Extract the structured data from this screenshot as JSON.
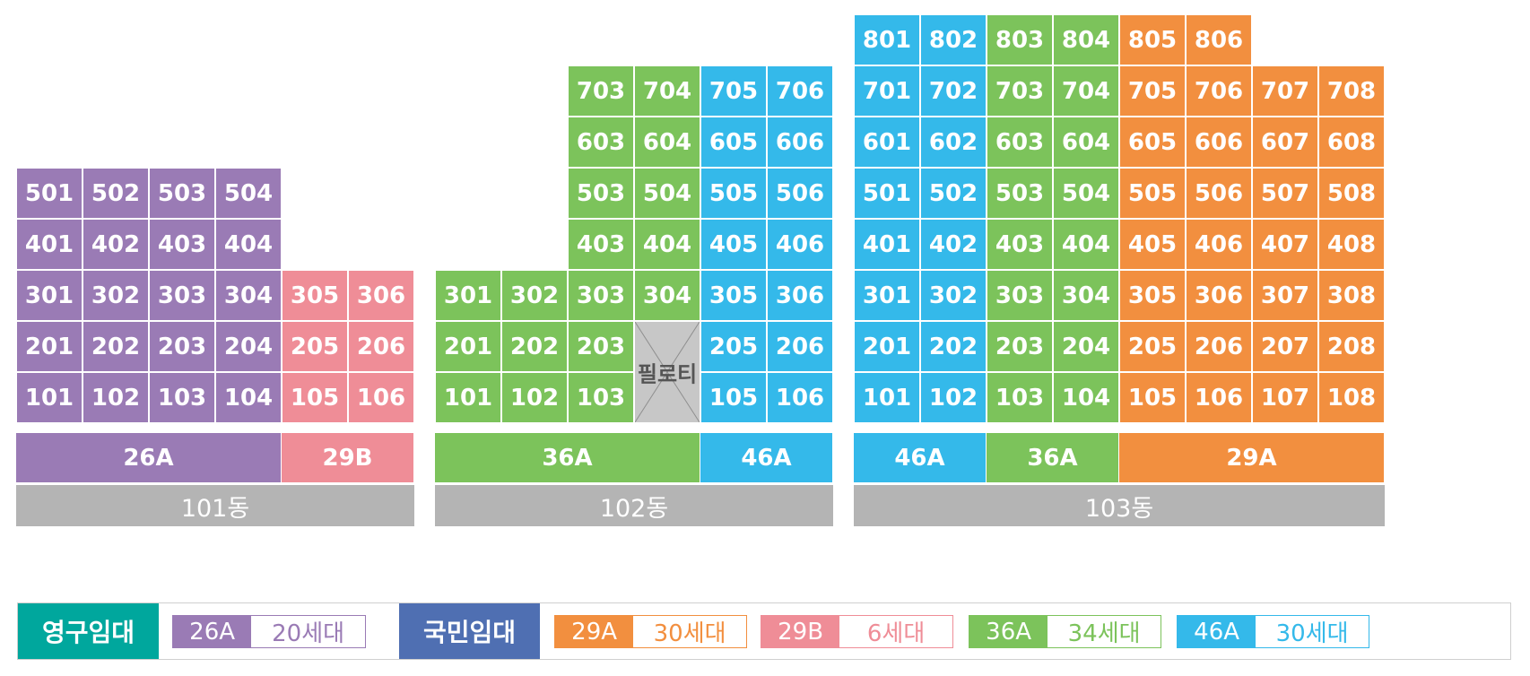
{
  "colors": {
    "purple": "#9a7bb5",
    "pink": "#ef8d97",
    "green": "#7cc35b",
    "blue": "#34b9ea",
    "orange": "#f28f3f",
    "gray": "#b4b4b4",
    "teal": "#00a79d",
    "navy": "#4f6fb2"
  },
  "buildings": [
    {
      "name": "101동",
      "rows": [
        {
          "floor": 5,
          "cells": [
            {
              "no": "501",
              "c": "purple"
            },
            {
              "no": "502",
              "c": "purple"
            },
            {
              "no": "503",
              "c": "purple"
            },
            {
              "no": "504",
              "c": "purple"
            }
          ]
        },
        {
          "floor": 4,
          "cells": [
            {
              "no": "401",
              "c": "purple"
            },
            {
              "no": "402",
              "c": "purple"
            },
            {
              "no": "403",
              "c": "purple"
            },
            {
              "no": "404",
              "c": "purple"
            }
          ]
        },
        {
          "floor": 3,
          "cells": [
            {
              "no": "301",
              "c": "purple"
            },
            {
              "no": "302",
              "c": "purple"
            },
            {
              "no": "303",
              "c": "purple"
            },
            {
              "no": "304",
              "c": "purple"
            },
            {
              "no": "305",
              "c": "pink"
            },
            {
              "no": "306",
              "c": "pink"
            }
          ]
        },
        {
          "floor": 2,
          "cells": [
            {
              "no": "201",
              "c": "purple"
            },
            {
              "no": "202",
              "c": "purple"
            },
            {
              "no": "203",
              "c": "purple"
            },
            {
              "no": "204",
              "c": "purple"
            },
            {
              "no": "205",
              "c": "pink"
            },
            {
              "no": "206",
              "c": "pink"
            }
          ]
        },
        {
          "floor": 1,
          "cells": [
            {
              "no": "101",
              "c": "purple"
            },
            {
              "no": "102",
              "c": "purple"
            },
            {
              "no": "103",
              "c": "purple"
            },
            {
              "no": "104",
              "c": "purple"
            },
            {
              "no": "105",
              "c": "pink"
            },
            {
              "no": "106",
              "c": "pink"
            }
          ]
        }
      ],
      "types": [
        {
          "label": "26A",
          "c": "purple",
          "span": 4
        },
        {
          "label": "29B",
          "c": "pink",
          "span": 2
        }
      ]
    },
    {
      "name": "102동",
      "rows": [
        {
          "floor": 7,
          "cells": [
            {
              "col": 2,
              "no": "703",
              "c": "green"
            },
            {
              "no": "704",
              "c": "green"
            },
            {
              "no": "705",
              "c": "blue"
            },
            {
              "no": "706",
              "c": "blue"
            }
          ]
        },
        {
          "floor": 6,
          "cells": [
            {
              "col": 2,
              "no": "603",
              "c": "green"
            },
            {
              "no": "604",
              "c": "green"
            },
            {
              "no": "605",
              "c": "blue"
            },
            {
              "no": "606",
              "c": "blue"
            }
          ]
        },
        {
          "floor": 5,
          "cells": [
            {
              "col": 2,
              "no": "503",
              "c": "green"
            },
            {
              "no": "504",
              "c": "green"
            },
            {
              "no": "505",
              "c": "blue"
            },
            {
              "no": "506",
              "c": "blue"
            }
          ]
        },
        {
          "floor": 4,
          "cells": [
            {
              "col": 2,
              "no": "403",
              "c": "green"
            },
            {
              "no": "404",
              "c": "green"
            },
            {
              "no": "405",
              "c": "blue"
            },
            {
              "no": "406",
              "c": "blue"
            }
          ]
        },
        {
          "floor": 3,
          "cells": [
            {
              "no": "301",
              "c": "green"
            },
            {
              "no": "302",
              "c": "green"
            },
            {
              "no": "303",
              "c": "green"
            },
            {
              "no": "304",
              "c": "green"
            },
            {
              "no": "305",
              "c": "blue"
            },
            {
              "no": "306",
              "c": "blue"
            }
          ]
        },
        {
          "floor": 2,
          "cells": [
            {
              "no": "201",
              "c": "green"
            },
            {
              "no": "202",
              "c": "green"
            },
            {
              "no": "203",
              "c": "green"
            },
            {
              "col": 4,
              "no": "205",
              "c": "blue"
            },
            {
              "no": "206",
              "c": "blue"
            }
          ]
        },
        {
          "floor": 1,
          "cells": [
            {
              "no": "101",
              "c": "green"
            },
            {
              "no": "102",
              "c": "green"
            },
            {
              "no": "103",
              "c": "green"
            },
            {
              "col": 4,
              "no": "105",
              "c": "blue"
            },
            {
              "no": "106",
              "c": "blue"
            }
          ]
        }
      ],
      "pilotis": {
        "label": "필로티",
        "col": 3
      },
      "types": [
        {
          "label": "36A",
          "c": "green",
          "span": 4
        },
        {
          "label": "46A",
          "c": "blue",
          "span": 2
        }
      ]
    },
    {
      "name": "103동",
      "rows": [
        {
          "floor": 8,
          "cells": [
            {
              "no": "801",
              "c": "blue"
            },
            {
              "no": "802",
              "c": "blue"
            },
            {
              "no": "803",
              "c": "green"
            },
            {
              "no": "804",
              "c": "green"
            },
            {
              "no": "805",
              "c": "orange"
            },
            {
              "no": "806",
              "c": "orange"
            }
          ]
        },
        {
          "floor": 7,
          "cells": [
            {
              "no": "701",
              "c": "blue"
            },
            {
              "no": "702",
              "c": "blue"
            },
            {
              "no": "703",
              "c": "green"
            },
            {
              "no": "704",
              "c": "green"
            },
            {
              "no": "705",
              "c": "orange"
            },
            {
              "no": "706",
              "c": "orange"
            },
            {
              "no": "707",
              "c": "orange"
            },
            {
              "no": "708",
              "c": "orange"
            }
          ]
        },
        {
          "floor": 6,
          "cells": [
            {
              "no": "601",
              "c": "blue"
            },
            {
              "no": "602",
              "c": "blue"
            },
            {
              "no": "603",
              "c": "green"
            },
            {
              "no": "604",
              "c": "green"
            },
            {
              "no": "605",
              "c": "orange"
            },
            {
              "no": "606",
              "c": "orange"
            },
            {
              "no": "607",
              "c": "orange"
            },
            {
              "no": "608",
              "c": "orange"
            }
          ]
        },
        {
          "floor": 5,
          "cells": [
            {
              "no": "501",
              "c": "blue"
            },
            {
              "no": "502",
              "c": "blue"
            },
            {
              "no": "503",
              "c": "green"
            },
            {
              "no": "504",
              "c": "green"
            },
            {
              "no": "505",
              "c": "orange"
            },
            {
              "no": "506",
              "c": "orange"
            },
            {
              "no": "507",
              "c": "orange"
            },
            {
              "no": "508",
              "c": "orange"
            }
          ]
        },
        {
          "floor": 4,
          "cells": [
            {
              "no": "401",
              "c": "blue"
            },
            {
              "no": "402",
              "c": "blue"
            },
            {
              "no": "403",
              "c": "green"
            },
            {
              "no": "404",
              "c": "green"
            },
            {
              "no": "405",
              "c": "orange"
            },
            {
              "no": "406",
              "c": "orange"
            },
            {
              "no": "407",
              "c": "orange"
            },
            {
              "no": "408",
              "c": "orange"
            }
          ]
        },
        {
          "floor": 3,
          "cells": [
            {
              "no": "301",
              "c": "blue"
            },
            {
              "no": "302",
              "c": "blue"
            },
            {
              "no": "303",
              "c": "green"
            },
            {
              "no": "304",
              "c": "green"
            },
            {
              "no": "305",
              "c": "orange"
            },
            {
              "no": "306",
              "c": "orange"
            },
            {
              "no": "307",
              "c": "orange"
            },
            {
              "no": "308",
              "c": "orange"
            }
          ]
        },
        {
          "floor": 2,
          "cells": [
            {
              "no": "201",
              "c": "blue"
            },
            {
              "no": "202",
              "c": "blue"
            },
            {
              "no": "203",
              "c": "green"
            },
            {
              "no": "204",
              "c": "green"
            },
            {
              "no": "205",
              "c": "orange"
            },
            {
              "no": "206",
              "c": "orange"
            },
            {
              "no": "207",
              "c": "orange"
            },
            {
              "no": "208",
              "c": "orange"
            }
          ]
        },
        {
          "floor": 1,
          "cells": [
            {
              "no": "101",
              "c": "blue"
            },
            {
              "no": "102",
              "c": "blue"
            },
            {
              "no": "103",
              "c": "green"
            },
            {
              "no": "104",
              "c": "green"
            },
            {
              "no": "105",
              "c": "orange"
            },
            {
              "no": "106",
              "c": "orange"
            },
            {
              "no": "107",
              "c": "orange"
            },
            {
              "no": "108",
              "c": "orange"
            }
          ]
        }
      ],
      "types": [
        {
          "label": "46A",
          "c": "blue",
          "span": 2
        },
        {
          "label": "36A",
          "c": "green",
          "span": 2
        },
        {
          "label": "29A",
          "c": "orange",
          "span": 4
        }
      ]
    }
  ],
  "legend": {
    "permanent": {
      "label": "영구임대",
      "items": [
        {
          "type": "26A",
          "count": "20세대",
          "c": "purple"
        }
      ]
    },
    "national": {
      "label": "국민임대",
      "items": [
        {
          "type": "29A",
          "count": "30세대",
          "c": "orange"
        },
        {
          "type": "29B",
          "count": "6세대",
          "c": "pink"
        },
        {
          "type": "36A",
          "count": "34세대",
          "c": "green"
        },
        {
          "type": "46A",
          "count": "30세대",
          "c": "blue"
        }
      ]
    }
  }
}
